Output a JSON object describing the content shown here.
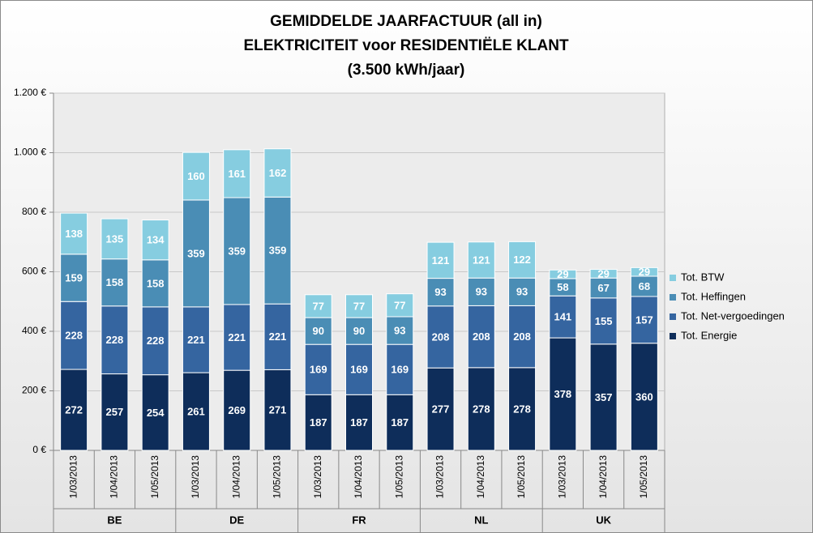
{
  "chart_data": {
    "type": "stacked_bar",
    "title_lines": [
      "GEMIDDELDE JAARFACTUUR (all in)",
      "ELEKTRICITEIT voor RESIDENTIËLE KLANT",
      "(3.500 kWh/jaar)"
    ],
    "categories": [
      "1/03/2013",
      "1/04/2013",
      "1/05/2013",
      "1/03/2013",
      "1/04/2013",
      "1/05/2013",
      "1/03/2013",
      "1/04/2013",
      "1/05/2013",
      "1/03/2013",
      "1/04/2013",
      "1/05/2013",
      "1/03/2013",
      "1/04/2013",
      "1/05/2013"
    ],
    "groups": [
      "BE",
      "DE",
      "FR",
      "NL",
      "UK"
    ],
    "series": [
      {
        "name": "Tot. Energie",
        "color": "#0e2d5a",
        "values": [
          272,
          257,
          254,
          261,
          269,
          271,
          187,
          187,
          187,
          277,
          278,
          278,
          378,
          357,
          360
        ]
      },
      {
        "name": "Tot. Net-vergoedingen",
        "color": "#3565a0",
        "values": [
          228,
          228,
          228,
          221,
          221,
          221,
          169,
          169,
          169,
          208,
          208,
          208,
          141,
          155,
          157
        ]
      },
      {
        "name": "Tot. Heffingen",
        "color": "#4a8db5",
        "values": [
          159,
          158,
          158,
          359,
          359,
          359,
          90,
          90,
          93,
          93,
          93,
          93,
          58,
          67,
          68
        ]
      },
      {
        "name": "Tot. BTW",
        "color": "#86cde0",
        "values": [
          138,
          135,
          134,
          160,
          161,
          162,
          77,
          77,
          77,
          121,
          121,
          122,
          29,
          29,
          29
        ]
      }
    ],
    "ylim": [
      0,
      1200
    ],
    "yticks": [
      {
        "value": 0,
        "label": "0 €"
      },
      {
        "value": 200,
        "label": "200 €"
      },
      {
        "value": 400,
        "label": "400 €"
      },
      {
        "value": 600,
        "label": "600 €"
      },
      {
        "value": 800,
        "label": "800 €"
      },
      {
        "value": 1000,
        "label": "1.000 €"
      },
      {
        "value": 1200,
        "label": "1.200 €"
      }
    ],
    "grid": true,
    "legend": "right"
  }
}
